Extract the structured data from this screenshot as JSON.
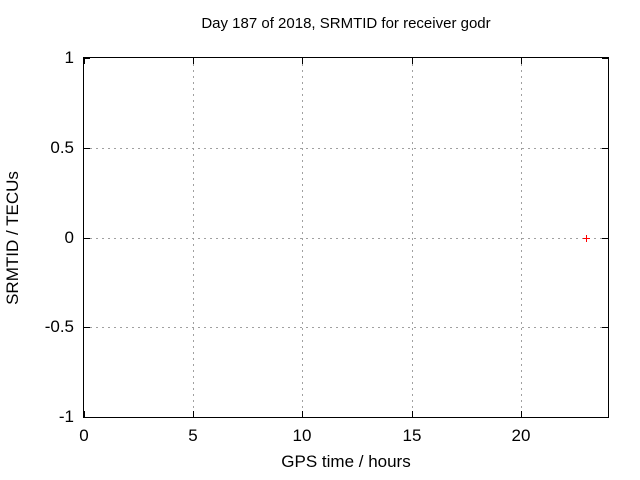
{
  "chart_data": {
    "type": "scatter",
    "title": "Day 187 of 2018, SRMTID for receiver godr",
    "xlabel": "GPS time / hours",
    "ylabel": "SRMTID / TECUs",
    "xlim": [
      0,
      24
    ],
    "ylim": [
      -1,
      1
    ],
    "xticks": [
      0,
      5,
      10,
      15,
      20
    ],
    "xtick_labels": [
      "0",
      "5",
      "10",
      "15",
      "20"
    ],
    "yticks": [
      -1,
      -0.5,
      0,
      0.5,
      1
    ],
    "ytick_labels": [
      "-1",
      "-0.5",
      "0",
      "0.5",
      "1"
    ],
    "grid": true,
    "grid_style": "dotted",
    "legend": "none",
    "tick_style": "inward-mirrored",
    "colors": {
      "background": "#ffffff",
      "axis": "#000000",
      "grid": "#a0a0a0",
      "text": "#000000",
      "point": "#ff0000"
    },
    "series": [
      {
        "marker": "plus",
        "color": "#ff0000",
        "points": [
          {
            "x": 23.0,
            "y": 0.0
          }
        ]
      }
    ]
  }
}
